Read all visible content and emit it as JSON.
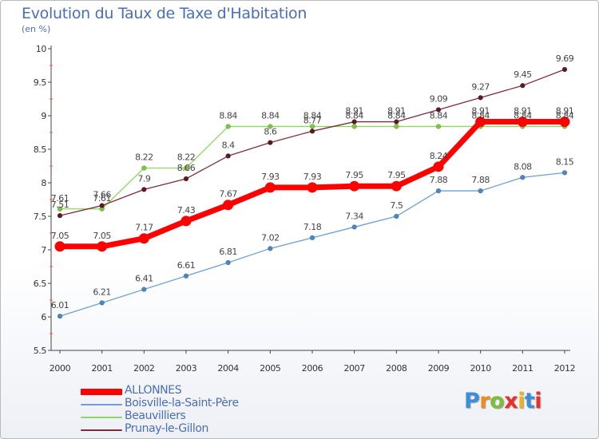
{
  "page": {
    "title": "Evolution du Taux de Taxe d'Habitation",
    "subtitle": "(en %)"
  },
  "chart_data": {
    "type": "line",
    "title": "Evolution du Taux de Taxe d'Habitation",
    "subtitle": "(en %)",
    "xlabel": "",
    "ylabel": "(en %)",
    "x": [
      "2000",
      "2001",
      "2002",
      "2003",
      "2004",
      "2005",
      "2006",
      "2007",
      "2008",
      "2009",
      "2010",
      "2011",
      "2012"
    ],
    "ylim": [
      5.5,
      10
    ],
    "yticks": [
      "5.5",
      "6",
      "6.5",
      "7",
      "7.5",
      "8",
      "8.5",
      "9",
      "9.5",
      "10"
    ],
    "grid": false,
    "legend_position": "bottom-left",
    "series": [
      {
        "name": "Beauvilliers",
        "color": "#8fd660",
        "marker": "#7cc444",
        "width": 1.3,
        "values": [
          7.61,
          7.61,
          8.22,
          8.22,
          8.84,
          8.84,
          8.84,
          8.84,
          8.84,
          8.84,
          8.84,
          8.84,
          8.84
        ],
        "labels": [
          "7.61",
          "7.61",
          "8.22",
          "8.22",
          "8.84",
          "8.84",
          "8.84",
          "8.84",
          "8.84",
          "8.84",
          "8.84",
          "8.84",
          "8.84"
        ]
      },
      {
        "name": "Prunay-le-Gillon",
        "color": "#7a2e38",
        "marker": "#5a1a22",
        "width": 1.3,
        "values": [
          7.51,
          7.66,
          7.9,
          8.06,
          8.4,
          8.6,
          8.77,
          8.91,
          8.91,
          9.09,
          9.27,
          9.45,
          9.69
        ],
        "labels": [
          "7.51",
          "7.66",
          "7.9",
          "8.06",
          "8.4",
          "8.6",
          "8.77",
          "8.91",
          "8.91",
          "9.09",
          "9.27",
          "9.45",
          "9.69"
        ]
      },
      {
        "name": "Boisville-la-Saint-Père",
        "color": "#6e9fd0",
        "marker": "#4a86c2",
        "width": 1.3,
        "values": [
          6.01,
          6.21,
          6.41,
          6.61,
          6.81,
          7.02,
          7.18,
          7.34,
          7.5,
          7.88,
          7.88,
          8.08,
          8.15
        ],
        "labels": [
          "6.01",
          "6.21",
          "6.41",
          "6.61",
          "6.81",
          "7.02",
          "7.18",
          "7.34",
          "7.5",
          "7.88",
          "7.88",
          "8.08",
          "8.15"
        ]
      },
      {
        "name": "ALLONNES",
        "color": "#ff0000",
        "marker": "#ff0000",
        "width": 7,
        "values": [
          7.05,
          7.05,
          7.17,
          7.43,
          7.67,
          7.93,
          7.93,
          7.95,
          7.95,
          8.24,
          8.91,
          8.91,
          8.91
        ],
        "labels": [
          "7.05",
          "7.05",
          "7.17",
          "7.43",
          "7.67",
          "7.93",
          "7.93",
          "7.95",
          "7.95",
          "8.24",
          "8.91",
          "8.91",
          "8.91"
        ]
      }
    ]
  },
  "legend": {
    "items": [
      {
        "label": "ALLONNES",
        "color": "#ff0000"
      },
      {
        "label": "Boisville-la-Saint-Père",
        "color": "#6e9fd0"
      },
      {
        "label": "Beauvilliers",
        "color": "#8fd660"
      },
      {
        "label": "Prunay-le-Gillon",
        "color": "#7a2e38"
      }
    ]
  },
  "logo": {
    "text": "Proxiti",
    "colors": [
      "#3a8fd8",
      "#f08a1c",
      "#7cbf3a",
      "#e8302a",
      "#f0b21c",
      "#3a8fd8",
      "#e8302a"
    ]
  }
}
